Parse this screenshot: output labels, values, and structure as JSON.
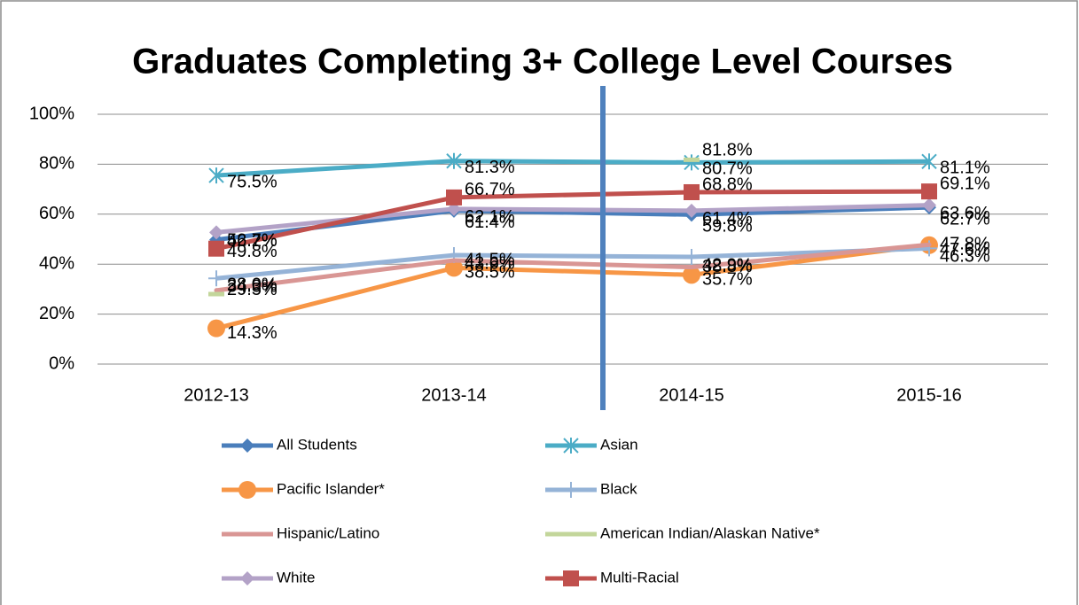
{
  "chart_data": {
    "type": "line",
    "title": "Graduates Completing 3+ College Level Courses",
    "categories": [
      "2012-13",
      "2013-14",
      "2014-15",
      "2015-16"
    ],
    "ylim": [
      0,
      100
    ],
    "yticks": [
      {
        "value": 0,
        "label": "0%"
      },
      {
        "value": 20,
        "label": "20%"
      },
      {
        "value": 40,
        "label": "40%"
      },
      {
        "value": 60,
        "label": "60%"
      },
      {
        "value": 80,
        "label": "80%"
      },
      {
        "value": 100,
        "label": "100%"
      }
    ],
    "grid": true,
    "legend": "bottom",
    "series": [
      {
        "name": "All Students",
        "color": "#4a7ebb",
        "marker": "diamond",
        "values": [
          49.8,
          61.4,
          59.8,
          62.7
        ],
        "value_labels": [
          "49.8%",
          "61.4%",
          "59.8%",
          "62.7%"
        ]
      },
      {
        "name": "Asian",
        "color": "#4bacc6",
        "marker": "star",
        "values": [
          75.5,
          81.3,
          80.7,
          81.1
        ],
        "value_labels": [
          "75.5%",
          "81.3%",
          "80.7%",
          "81.1%"
        ]
      },
      {
        "name": "Pacific Islander*",
        "color": "#f79646",
        "marker": "circle",
        "values": [
          14.3,
          38.5,
          35.7,
          47.6
        ],
        "value_labels": [
          "14.3%",
          "38.5%",
          "35.7%",
          "47.6%"
        ]
      },
      {
        "name": "Black",
        "color": "#95b3d7",
        "marker": "plus",
        "values": [
          34.3,
          43.6,
          42.9,
          46.3
        ],
        "value_labels": [
          "34.3%",
          "43.6%",
          "42.9%",
          "46.3%"
        ]
      },
      {
        "name": "Hispanic/Latino",
        "color": "#d99694",
        "marker": "none",
        "values": [
          29.5,
          41.5,
          38.8,
          47.8
        ],
        "value_labels": [
          "29.5%",
          "41.5%",
          "38.8%",
          "47.8%"
        ]
      },
      {
        "name": "American Indian/Alaskan Native*",
        "color": "#c3d69b",
        "marker": "dash",
        "values": [
          28.0,
          null,
          81.8,
          null
        ],
        "value_labels": [
          "28.0%",
          null,
          "81.8%",
          null
        ]
      },
      {
        "name": "White",
        "color": "#b3a2c7",
        "marker": "diamond",
        "values": [
          52.7,
          62.1,
          61.4,
          63.6
        ],
        "value_labels": [
          "52.7%",
          "62.1%",
          "61.4%",
          "63.6%"
        ]
      },
      {
        "name": "Multi-Racial",
        "color": "#c0504d",
        "marker": "square",
        "values": [
          46.2,
          66.7,
          68.8,
          69.1
        ],
        "value_labels": [
          "46.2%",
          "66.7%",
          "68.8%",
          "69.1%"
        ]
      }
    ]
  }
}
